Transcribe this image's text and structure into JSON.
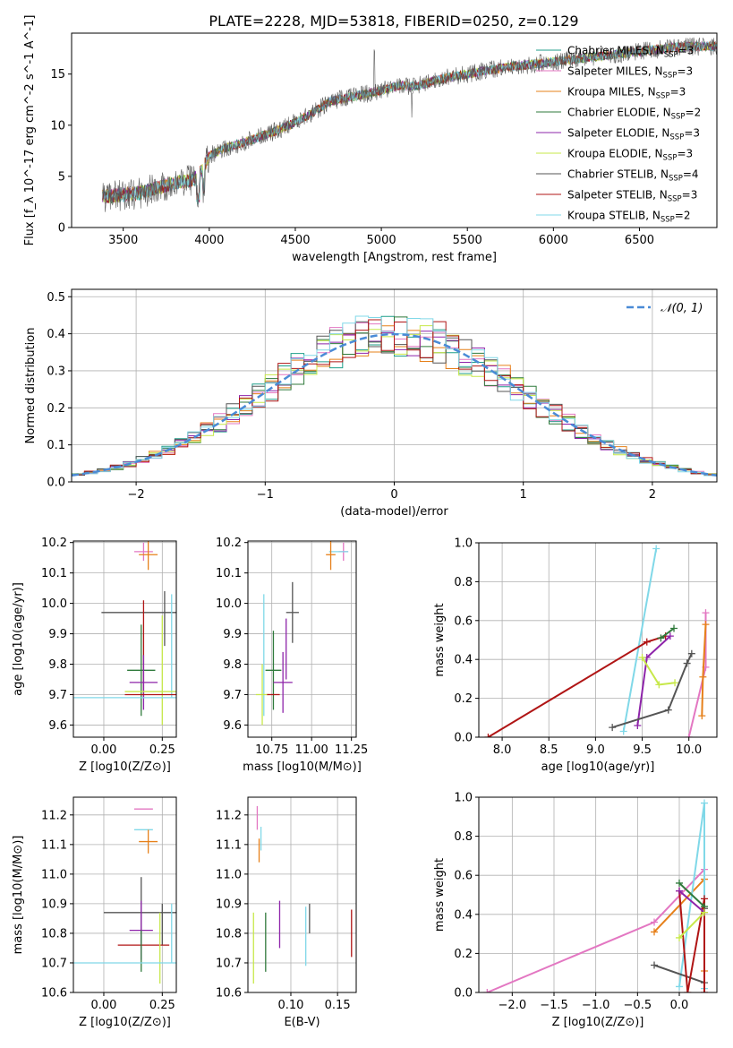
{
  "figure_title": "PLATE=2228, MJD=53818, FIBERID=0250, z=0.129",
  "colors": {
    "chabrier_miles": "#1f9e89",
    "salpeter_miles": "#e377c2",
    "kroupa_miles": "#e6801a",
    "chabrier_elodie": "#2f7a3b",
    "salpeter_elodie": "#8e24aa",
    "kroupa_elodie": "#c7e84a",
    "chabrier_stelib": "#555555",
    "salpeter_stelib": "#b01515",
    "kroupa_stelib": "#80d8e8",
    "dashed": "#4a8bd6",
    "grid": "#b0b0b0"
  },
  "legend_top": [
    {
      "key": "chabrier_miles",
      "label": "Chabrier MILES, N_SSP=3"
    },
    {
      "key": "salpeter_miles",
      "label": "Salpeter MILES, N_SSP=3"
    },
    {
      "key": "kroupa_miles",
      "label": "Kroupa MILES, N_SSP=3"
    },
    {
      "key": "chabrier_elodie",
      "label": "Chabrier ELODIE, N_SSP=2"
    },
    {
      "key": "salpeter_elodie",
      "label": "Salpeter ELODIE, N_SSP=3"
    },
    {
      "key": "kroupa_elodie",
      "label": "Kroupa ELODIE, N_SSP=3"
    },
    {
      "key": "chabrier_stelib",
      "label": "Chabrier STELIB, N_SSP=4"
    },
    {
      "key": "salpeter_stelib",
      "label": "Salpeter STELIB, N_SSP=3"
    },
    {
      "key": "kroupa_stelib",
      "label": "Kroupa STELIB, N_SSP=2"
    }
  ],
  "chart_data": [
    {
      "id": "spectrum",
      "type": "line",
      "title": "PLATE=2228, MJD=53818, FIBERID=0250, z=0.129",
      "xlabel": "wavelength [Angstrom, rest frame]",
      "ylabel": "Flux [f_λ 10^-17 erg cm^-2 s^-1 A^-1]",
      "xlim": [
        3200,
        6950
      ],
      "ylim": [
        0,
        19
      ],
      "xticks": [
        3500,
        4000,
        4500,
        5000,
        5500,
        6000,
        6500
      ],
      "yticks": [
        0,
        5,
        10,
        15
      ],
      "continuum_points": [
        [
          3380,
          3.0
        ],
        [
          3500,
          3.2
        ],
        [
          3600,
          3.4
        ],
        [
          3700,
          3.9
        ],
        [
          3800,
          4.4
        ],
        [
          3900,
          4.6
        ],
        [
          3960,
          5.6
        ],
        [
          4000,
          7.0
        ],
        [
          4100,
          7.8
        ],
        [
          4200,
          8.3
        ],
        [
          4300,
          8.9
        ],
        [
          4400,
          9.5
        ],
        [
          4500,
          10.3
        ],
        [
          4600,
          11.2
        ],
        [
          4700,
          12.3
        ],
        [
          4800,
          12.7
        ],
        [
          4900,
          13.0
        ],
        [
          5000,
          13.4
        ],
        [
          5100,
          13.9
        ],
        [
          5200,
          13.8
        ],
        [
          5300,
          14.3
        ],
        [
          5400,
          14.7
        ],
        [
          5500,
          15.0
        ],
        [
          5600,
          15.3
        ],
        [
          5700,
          15.6
        ],
        [
          5800,
          15.8
        ],
        [
          5900,
          16.0
        ],
        [
          6000,
          16.2
        ],
        [
          6100,
          16.4
        ],
        [
          6200,
          16.6
        ],
        [
          6300,
          16.8
        ],
        [
          6400,
          17.0
        ],
        [
          6500,
          17.2
        ],
        [
          6600,
          17.4
        ],
        [
          6700,
          17.6
        ],
        [
          6800,
          17.7
        ]
      ],
      "grid": false,
      "legend": "top-right"
    },
    {
      "id": "residuals",
      "type": "histogram",
      "xlabel": "(data-model)/error",
      "ylabel": "Normed distribution",
      "xlim": [
        -2.5,
        2.5
      ],
      "ylim": [
        0,
        0.52
      ],
      "xticks": [
        -2,
        -1,
        0,
        1,
        2
      ],
      "yticks": [
        0.0,
        0.1,
        0.2,
        0.3,
        0.4,
        0.5
      ],
      "bin_width": 0.1,
      "reference_curve": "N(0,1)",
      "legend_label": "𝒩(0, 1)",
      "grid": true,
      "legend": "top-right"
    },
    {
      "id": "age_vs_Z",
      "type": "errorbar",
      "xlabel": "Z [log10(Z/Z⊙)]",
      "ylabel": "age  [log10(age/yr)]",
      "xlim": [
        -0.13,
        0.31
      ],
      "ylim": [
        9.56,
        10.205
      ],
      "xticks": [
        0.0,
        0.25
      ],
      "yticks": [
        9.6,
        9.7,
        9.8,
        9.9,
        10.0,
        10.1,
        10.2
      ],
      "points": [
        {
          "key": "salpeter_miles",
          "x": 0.17,
          "y": 10.17,
          "xerr": 0.04,
          "yerr": 0.03
        },
        {
          "key": "kroupa_miles",
          "x": 0.19,
          "y": 10.16,
          "xerr": 0.04,
          "yerr": 0.05
        },
        {
          "key": "chabrier_stelib",
          "x": 0.15,
          "y": 9.97,
          "xerr": 0.16,
          "yerr": 0.0
        },
        {
          "key": "chabrier_stelib",
          "x": 0.26,
          "y": 9.95,
          "xerr": 0.0,
          "yerr": 0.09
        },
        {
          "key": "salpeter_stelib",
          "x": 0.17,
          "y": 9.85,
          "xerr": 0.0,
          "yerr": 0.16
        },
        {
          "key": "kroupa_stelib",
          "x": 0.29,
          "y": 9.86,
          "xerr": 0.0,
          "yerr": 0.17
        },
        {
          "key": "chabrier_elodie",
          "x": 0.16,
          "y": 9.78,
          "xerr": 0.06,
          "yerr": 0.15
        },
        {
          "key": "salpeter_elodie",
          "x": 0.17,
          "y": 9.74,
          "xerr": 0.06,
          "yerr": 0.09
        },
        {
          "key": "kroupa_elodie",
          "x": 0.25,
          "y": 9.78,
          "xerr": 0.0,
          "yerr": 0.18
        },
        {
          "key": "kroupa_elodie",
          "x": 0.2,
          "y": 9.71,
          "xerr": 0.11,
          "yerr": 0.0
        },
        {
          "key": "salpeter_stelib",
          "x": 0.2,
          "y": 9.7,
          "xerr": 0.11,
          "yerr": 0.0
        },
        {
          "key": "kroupa_stelib",
          "x": 0.1,
          "y": 9.69,
          "xerr": 0.23,
          "yerr": 0.0
        }
      ],
      "grid": true
    },
    {
      "id": "age_vs_mass",
      "type": "errorbar",
      "xlabel": "mass [log10(M/M⊙)]",
      "ylabel": "",
      "xlim": [
        10.6,
        11.28
      ],
      "ylim": [
        9.56,
        10.205
      ],
      "xticks": [
        10.75,
        11.0,
        11.25
      ],
      "yticks": [
        9.6,
        9.7,
        9.8,
        9.9,
        10.0,
        10.1,
        10.2
      ],
      "points": [
        {
          "key": "salpeter_miles",
          "x": 11.2,
          "y": 10.17,
          "xerr": 0.03,
          "yerr": 0.03
        },
        {
          "key": "kroupa_stelib",
          "x": 11.17,
          "y": 10.17,
          "xerr": 0.06,
          "yerr": 0.0
        },
        {
          "key": "kroupa_miles",
          "x": 11.12,
          "y": 10.16,
          "xerr": 0.03,
          "yerr": 0.05
        },
        {
          "key": "chabrier_stelib",
          "x": 10.88,
          "y": 9.97,
          "xerr": 0.04,
          "yerr": 0.1
        },
        {
          "key": "kroupa_stelib",
          "x": 10.7,
          "y": 9.83,
          "xerr": 0.0,
          "yerr": 0.2
        },
        {
          "key": "salpeter_elodie",
          "x": 10.84,
          "y": 9.85,
          "xerr": 0.0,
          "yerr": 0.1
        },
        {
          "key": "chabrier_elodie",
          "x": 10.76,
          "y": 9.78,
          "xerr": 0.05,
          "yerr": 0.13
        },
        {
          "key": "salpeter_elodie",
          "x": 10.82,
          "y": 9.74,
          "xerr": 0.06,
          "yerr": 0.1
        },
        {
          "key": "kroupa_elodie",
          "x": 10.69,
          "y": 9.7,
          "xerr": 0.04,
          "yerr": 0.1
        },
        {
          "key": "salpeter_stelib",
          "x": 10.76,
          "y": 9.7,
          "xerr": 0.04,
          "yerr": 0.0
        }
      ],
      "grid": true
    },
    {
      "id": "massweight_vs_age",
      "type": "line",
      "xlabel": "age  [log10(age/yr)]",
      "ylabel": "mass weight",
      "xlim": [
        7.75,
        10.3
      ],
      "ylim": [
        0,
        1.0
      ],
      "xticks": [
        8.0,
        8.5,
        9.0,
        9.5,
        10.0
      ],
      "yticks": [
        0.0,
        0.2,
        0.4,
        0.6,
        0.8,
        1.0
      ],
      "series": [
        {
          "key": "kroupa_stelib",
          "x": [
            9.3,
            9.65
          ],
          "y": [
            0.03,
            0.97
          ]
        },
        {
          "key": "salpeter_stelib",
          "x": [
            7.85,
            9.55,
            9.75
          ],
          "y": [
            0.0,
            0.49,
            0.52
          ]
        },
        {
          "key": "salpeter_elodie",
          "x": [
            9.45,
            9.55,
            9.8
          ],
          "y": [
            0.06,
            0.41,
            0.52
          ]
        },
        {
          "key": "kroupa_elodie",
          "x": [
            9.5,
            9.68,
            9.85
          ],
          "y": [
            0.41,
            0.27,
            0.28
          ]
        },
        {
          "key": "chabrier_elodie",
          "x": [
            9.7,
            9.84
          ],
          "y": [
            0.51,
            0.56
          ]
        },
        {
          "key": "chabrier_stelib",
          "x": [
            9.18,
            9.78,
            9.98,
            10.03
          ],
          "y": [
            0.05,
            0.14,
            0.38,
            0.43
          ]
        },
        {
          "key": "salpeter_miles",
          "x": [
            10.0,
            10.18,
            10.18
          ],
          "y": [
            0.0,
            0.36,
            0.64
          ]
        },
        {
          "key": "kroupa_miles",
          "x": [
            10.14,
            10.15,
            10.18
          ],
          "y": [
            0.11,
            0.31,
            0.58
          ]
        }
      ],
      "grid": true
    },
    {
      "id": "mass_vs_Z",
      "type": "errorbar",
      "xlabel": "Z [log10(Z/Z⊙)]",
      "ylabel": "mass [log10(M/M⊙)]",
      "xlim": [
        -0.13,
        0.31
      ],
      "ylim": [
        10.6,
        11.26
      ],
      "xticks": [
        0.0,
        0.25
      ],
      "yticks": [
        10.6,
        10.7,
        10.8,
        10.9,
        11.0,
        11.1,
        11.2
      ],
      "points": [
        {
          "key": "salpeter_miles",
          "x": 0.17,
          "y": 11.22,
          "xerr": 0.04,
          "yerr": 0.0
        },
        {
          "key": "kroupa_stelib",
          "x": 0.17,
          "y": 11.15,
          "xerr": 0.04,
          "yerr": 0.0
        },
        {
          "key": "kroupa_miles",
          "x": 0.19,
          "y": 11.11,
          "xerr": 0.04,
          "yerr": 0.04
        },
        {
          "key": "chabrier_stelib",
          "x": 0.16,
          "y": 10.87,
          "xerr": 0.16,
          "yerr": 0.12
        },
        {
          "key": "chabrier_stelib",
          "x": 0.25,
          "y": 10.83,
          "xerr": 0.0,
          "yerr": 0.07
        },
        {
          "key": "salpeter_elodie",
          "x": 0.16,
          "y": 10.81,
          "xerr": 0.05,
          "yerr": 0.1
        },
        {
          "key": "salpeter_stelib",
          "x": 0.17,
          "y": 10.76,
          "xerr": 0.11,
          "yerr": 0.0
        },
        {
          "key": "kroupa_elodie",
          "x": 0.24,
          "y": 10.75,
          "xerr": 0.0,
          "yerr": 0.12
        },
        {
          "key": "kroupa_stelib",
          "x": 0.29,
          "y": 10.8,
          "xerr": 0.0,
          "yerr": 0.1
        },
        {
          "key": "chabrier_elodie",
          "x": 0.16,
          "y": 10.74,
          "xerr": 0.0,
          "yerr": 0.07
        },
        {
          "key": "kroupa_stelib",
          "x": 0.1,
          "y": 10.7,
          "xerr": 0.23,
          "yerr": 0.0
        }
      ],
      "grid": true
    },
    {
      "id": "mass_vs_ebv",
      "type": "errorbar",
      "xlabel": "E(B-V)",
      "ylabel": "",
      "xlim": [
        0.054,
        0.17
      ],
      "ylim": [
        10.6,
        11.26
      ],
      "xticks": [
        0.05,
        0.1,
        0.15
      ],
      "yticks": [
        10.6,
        10.7,
        10.8,
        10.9,
        11.0,
        11.1,
        11.2
      ],
      "points": [
        {
          "key": "salpeter_miles",
          "x": 0.064,
          "y": 11.19,
          "xerr": 0.0,
          "yerr": 0.04
        },
        {
          "key": "kroupa_stelib",
          "x": 0.068,
          "y": 11.12,
          "xerr": 0.0,
          "yerr": 0.04
        },
        {
          "key": "kroupa_miles",
          "x": 0.066,
          "y": 11.08,
          "xerr": 0.0,
          "yerr": 0.04
        },
        {
          "key": "kroupa_elodie",
          "x": 0.06,
          "y": 10.75,
          "xerr": 0.0,
          "yerr": 0.12
        },
        {
          "key": "chabrier_elodie",
          "x": 0.073,
          "y": 10.77,
          "xerr": 0.0,
          "yerr": 0.1
        },
        {
          "key": "salpeter_elodie",
          "x": 0.088,
          "y": 10.83,
          "xerr": 0.0,
          "yerr": 0.08
        },
        {
          "key": "kroupa_stelib",
          "x": 0.116,
          "y": 10.79,
          "xerr": 0.0,
          "yerr": 0.1
        },
        {
          "key": "chabrier_stelib",
          "x": 0.12,
          "y": 10.85,
          "xerr": 0.0,
          "yerr": 0.05
        },
        {
          "key": "salpeter_stelib",
          "x": 0.165,
          "y": 10.8,
          "xerr": 0.0,
          "yerr": 0.08
        }
      ],
      "grid": true
    },
    {
      "id": "massweight_vs_Z",
      "type": "line",
      "xlabel": "Z [log10(Z/Z⊙)]",
      "ylabel": "mass weight",
      "xlim": [
        -2.4,
        0.45
      ],
      "ylim": [
        0,
        1.0
      ],
      "xticks": [
        -2.0,
        -1.5,
        -1.0,
        -0.5,
        0.0
      ],
      "yticks": [
        0.0,
        0.2,
        0.4,
        0.6,
        0.8,
        1.0
      ],
      "series": [
        {
          "key": "salpeter_miles",
          "x": [
            -2.3,
            -0.3,
            0.3,
            0.3
          ],
          "y": [
            0.0,
            0.36,
            0.63,
            0.0
          ]
        },
        {
          "key": "kroupa_miles",
          "x": [
            -0.3,
            0.3,
            0.3
          ],
          "y": [
            0.31,
            0.58,
            0.11
          ]
        },
        {
          "key": "kroupa_stelib",
          "x": [
            0.0,
            0.3,
            0.3
          ],
          "y": [
            0.03,
            0.97,
            0.02
          ]
        },
        {
          "key": "chabrier_stelib",
          "x": [
            -0.3,
            0.3,
            0.3
          ],
          "y": [
            0.14,
            0.05,
            0.43
          ]
        },
        {
          "key": "salpeter_stelib",
          "x": [
            0.0,
            0.1,
            0.3,
            0.3
          ],
          "y": [
            0.52,
            0.0,
            0.48,
            0.0
          ]
        },
        {
          "key": "chabrier_elodie",
          "x": [
            0.0,
            0.3
          ],
          "y": [
            0.56,
            0.44
          ]
        },
        {
          "key": "salpeter_elodie",
          "x": [
            0.0,
            0.3
          ],
          "y": [
            0.52,
            0.41
          ]
        },
        {
          "key": "kroupa_elodie",
          "x": [
            0.0,
            0.3
          ],
          "y": [
            0.28,
            0.41
          ]
        }
      ],
      "grid": true
    }
  ]
}
